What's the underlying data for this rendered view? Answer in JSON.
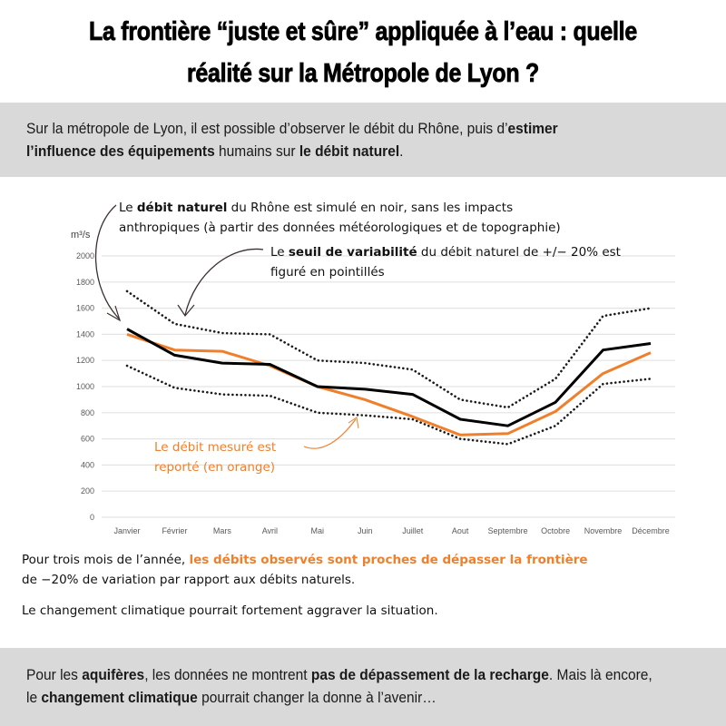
{
  "header": {
    "title_line1": "La frontière “juste et sûre” appliquée à l’eau : quelle",
    "title_line2": "réalité sur la Métropole de Lyon ?"
  },
  "intro": {
    "t1": "Sur la métropole de Lyon, il est possible d’observer le débit du Rhône, puis d’",
    "b1": "estimer",
    "b2": "l’influence des équipements",
    "t2": " humains sur ",
    "b3": "le débit naturel",
    "t3": "."
  },
  "annotations": {
    "natural": {
      "prefix": "Le ",
      "bold": "débit naturel",
      "line1_rest": " du Rhône est simulé en noir,  sans les impacts",
      "line2": "anthropiques (à partir des données météorologiques et de topographie)"
    },
    "threshold": {
      "prefix": "Le ",
      "bold": "seuil de variabilité",
      "line1_rest": " du débit naturel de +/− 20% est",
      "line2": "figuré en pointillés"
    },
    "measured": {
      "line1": "Le débit mesuré est",
      "line2": "reporté (en orange)"
    }
  },
  "notes": {
    "n1_prefix": "Pour trois mois de l’année, ",
    "n1_highlight": "les débits observés sont proches de dépasser la frontière",
    "n1_line2": "de −20% de variation par rapport aux débits naturels.",
    "n2": "Le changement climatique pourrait fortement aggraver la situation."
  },
  "footer": {
    "t1": "Pour les ",
    "b1": "aquifères",
    "t2": ", les données ne montrent ",
    "b2": "pas de dépassement de la recharge",
    "t3": ". Mais là encore, le ",
    "b3": "changement climatique",
    "t4": " pourrait changer la donne à l’avenir…"
  },
  "colors": {
    "natural": "#000000",
    "measured": "#f07f2c",
    "threshold": "#1a1a1a",
    "grid": "#e3e3e3",
    "band": "#d9d9d9"
  },
  "chart_data": {
    "type": "line",
    "title": "",
    "xlabel": "",
    "ylabel": "m³/s",
    "ylim": [
      0,
      2000
    ],
    "yticks": [
      0,
      200,
      400,
      600,
      800,
      1000,
      1200,
      1400,
      1600,
      1800,
      2000
    ],
    "grid": true,
    "categories": [
      "Janvier",
      "Février",
      "Mars",
      "Avril",
      "Mai",
      "Juin",
      "Juillet",
      "Aout",
      "Septembre",
      "Octobre",
      "Novembre",
      "Décembre"
    ],
    "series": [
      {
        "name": "Seuil +20%",
        "style": "dotted",
        "values": [
          1730,
          1480,
          1410,
          1400,
          1200,
          1180,
          1130,
          900,
          840,
          1060,
          1540,
          1600
        ]
      },
      {
        "name": "Seuil -20%",
        "style": "dotted",
        "values": [
          1160,
          990,
          940,
          930,
          800,
          780,
          750,
          600,
          560,
          700,
          1020,
          1060
        ]
      },
      {
        "name": "Débit mesuré",
        "style": "solid-orange",
        "values": [
          1400,
          1280,
          1270,
          1160,
          1000,
          900,
          770,
          630,
          640,
          810,
          1100,
          1260
        ]
      },
      {
        "name": "Débit naturel",
        "style": "solid-black",
        "values": [
          1440,
          1240,
          1180,
          1170,
          1000,
          980,
          940,
          750,
          700,
          880,
          1280,
          1330
        ]
      }
    ]
  }
}
